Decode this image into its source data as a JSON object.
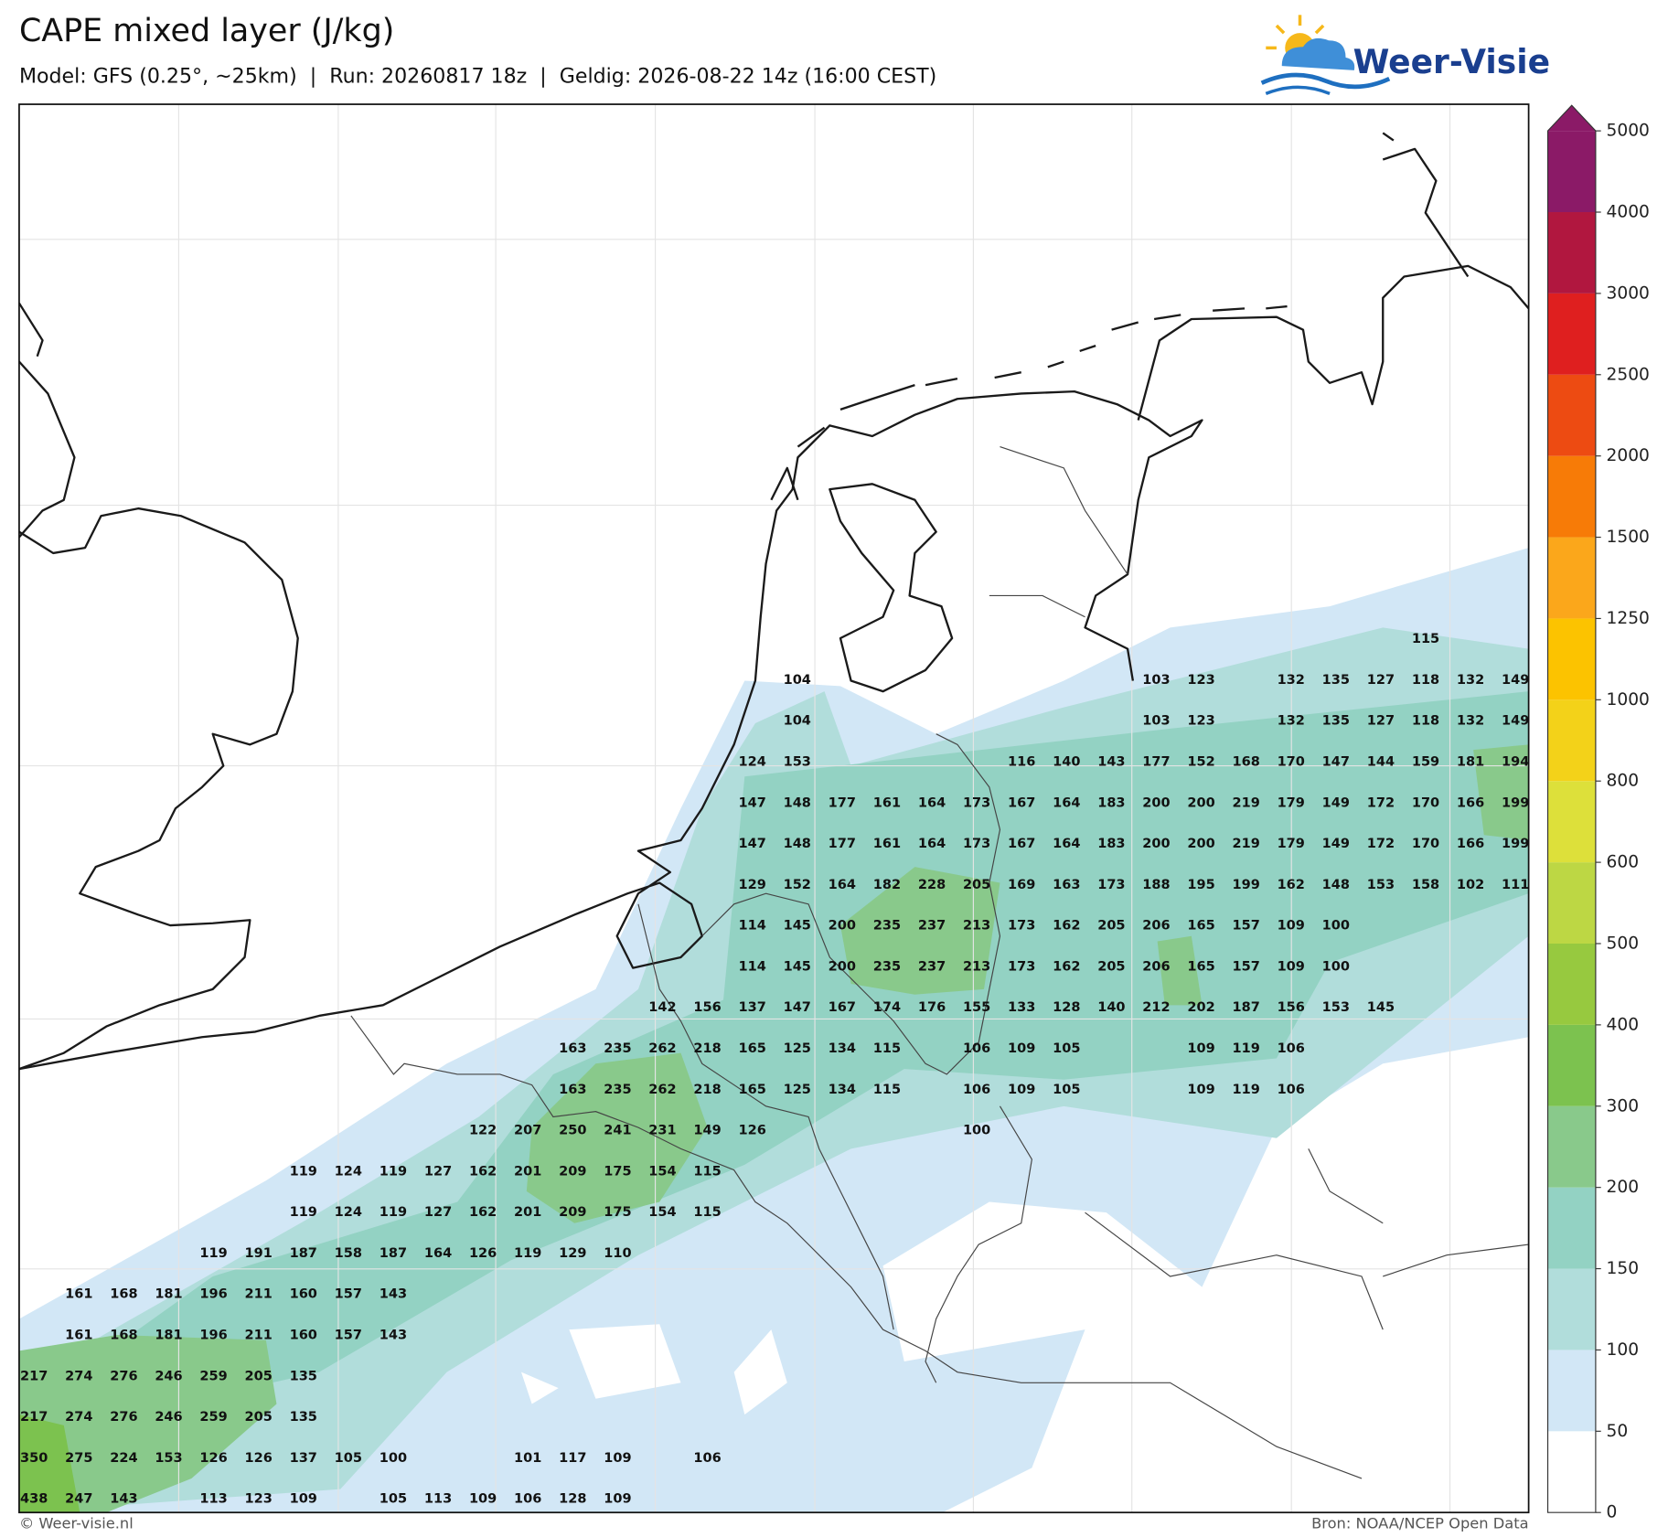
{
  "header": {
    "title": "CAPE mixed layer (J/kg)",
    "subtitle": "Model: GFS (0.25°, ~25km)  |  Run: 20260817 18z  |  Geldig: 2026-08-22 14z (16:00 CEST)"
  },
  "logo": "Weer-Visie",
  "colorbar": {
    "ticks": [
      0,
      50,
      100,
      150,
      200,
      300,
      400,
      500,
      600,
      800,
      1000,
      1250,
      1500,
      2000,
      2500,
      3000,
      4000,
      5000
    ],
    "colors": [
      "#ffffff",
      "#d2e7f6",
      "#b1dddb",
      "#93d2c3",
      "#89c98b",
      "#7cc24f",
      "#97c93f",
      "#bdd744",
      "#dde03a",
      "#f3d219",
      "#fcc300",
      "#fba71b",
      "#f77b07",
      "#ed4b12",
      "#df1f1f",
      "#b1173f",
      "#8b1a67"
    ]
  },
  "grid_values": [
    [
      null,
      null,
      null,
      null,
      null,
      null,
      null,
      null,
      null,
      null,
      null,
      null,
      null,
      null,
      null,
      null,
      null,
      null,
      null,
      null,
      null,
      null,
      null,
      null,
      null,
      null,
      null,
      null,
      null,
      null,
      null,
      115,
      null,
      null
    ],
    [
      null,
      null,
      null,
      null,
      null,
      null,
      null,
      null,
      null,
      null,
      null,
      null,
      null,
      null,
      null,
      null,
      null,
      104,
      null,
      null,
      null,
      null,
      null,
      null,
      null,
      103,
      123,
      null,
      132,
      135,
      127,
      118,
      132,
      149
    ],
    [
      null,
      null,
      null,
      null,
      null,
      null,
      null,
      null,
      null,
      null,
      null,
      null,
      null,
      null,
      null,
      null,
      null,
      104,
      null,
      null,
      null,
      null,
      null,
      null,
      null,
      103,
      123,
      null,
      132,
      135,
      127,
      118,
      132,
      149
    ],
    [
      null,
      null,
      null,
      null,
      null,
      null,
      null,
      null,
      null,
      null,
      null,
      null,
      null,
      null,
      null,
      null,
      124,
      153,
      null,
      null,
      null,
      null,
      116,
      140,
      143,
      177,
      152,
      168,
      170,
      147,
      144,
      159,
      181,
      194
    ],
    [
      null,
      null,
      null,
      null,
      null,
      null,
      null,
      null,
      null,
      null,
      null,
      null,
      null,
      null,
      null,
      null,
      147,
      148,
      177,
      161,
      164,
      173,
      167,
      164,
      183,
      200,
      200,
      219,
      179,
      149,
      172,
      170,
      166,
      199
    ],
    [
      null,
      null,
      null,
      null,
      null,
      null,
      null,
      null,
      null,
      null,
      null,
      null,
      null,
      null,
      null,
      null,
      147,
      148,
      177,
      161,
      164,
      173,
      167,
      164,
      183,
      200,
      200,
      219,
      179,
      149,
      172,
      170,
      166,
      199
    ],
    [
      null,
      null,
      null,
      null,
      null,
      null,
      null,
      null,
      null,
      null,
      null,
      null,
      null,
      null,
      null,
      null,
      129,
      152,
      164,
      182,
      228,
      205,
      169,
      163,
      173,
      188,
      195,
      199,
      162,
      148,
      153,
      158,
      102,
      111
    ],
    [
      null,
      null,
      null,
      null,
      null,
      null,
      null,
      null,
      null,
      null,
      null,
      null,
      null,
      null,
      null,
      null,
      114,
      145,
      200,
      235,
      237,
      213,
      173,
      162,
      205,
      206,
      165,
      157,
      109,
      100,
      null,
      null,
      null,
      null
    ],
    [
      null,
      null,
      null,
      null,
      null,
      null,
      null,
      null,
      null,
      null,
      null,
      null,
      null,
      null,
      null,
      null,
      114,
      145,
      200,
      235,
      237,
      213,
      173,
      162,
      205,
      206,
      165,
      157,
      109,
      100,
      null,
      null,
      null,
      null
    ],
    [
      null,
      null,
      null,
      null,
      null,
      null,
      null,
      null,
      null,
      null,
      null,
      null,
      null,
      null,
      142,
      156,
      137,
      147,
      167,
      174,
      176,
      155,
      133,
      128,
      140,
      212,
      202,
      187,
      156,
      153,
      145,
      null,
      null,
      null
    ],
    [
      null,
      null,
      null,
      null,
      null,
      null,
      null,
      null,
      null,
      null,
      null,
      null,
      163,
      235,
      262,
      218,
      165,
      125,
      134,
      115,
      null,
      106,
      109,
      105,
      null,
      null,
      109,
      119,
      106,
      null,
      null,
      null,
      null,
      null
    ],
    [
      null,
      null,
      null,
      null,
      null,
      null,
      null,
      null,
      null,
      null,
      null,
      null,
      163,
      235,
      262,
      218,
      165,
      125,
      134,
      115,
      null,
      106,
      109,
      105,
      null,
      null,
      109,
      119,
      106,
      null,
      null,
      null,
      null,
      null
    ],
    [
      null,
      null,
      null,
      null,
      null,
      null,
      null,
      null,
      null,
      null,
      122,
      207,
      250,
      241,
      231,
      149,
      126,
      null,
      null,
      null,
      null,
      100,
      null,
      null,
      null,
      null,
      null,
      null,
      null,
      null,
      null,
      null,
      null,
      null
    ],
    [
      null,
      null,
      null,
      null,
      null,
      null,
      119,
      124,
      119,
      127,
      162,
      201,
      209,
      175,
      154,
      115,
      null,
      null,
      null,
      null,
      null,
      null,
      null,
      null,
      null,
      null,
      null,
      null,
      null,
      null,
      null,
      null,
      null,
      null
    ],
    [
      null,
      null,
      null,
      null,
      null,
      null,
      119,
      124,
      119,
      127,
      162,
      201,
      209,
      175,
      154,
      115,
      null,
      null,
      null,
      null,
      null,
      null,
      null,
      null,
      null,
      null,
      null,
      null,
      null,
      null,
      null,
      null,
      null,
      null
    ],
    [
      null,
      null,
      null,
      null,
      119,
      191,
      187,
      158,
      187,
      164,
      126,
      119,
      129,
      110,
      null,
      null,
      null,
      null,
      null,
      null,
      null,
      null,
      null,
      null,
      null,
      null,
      null,
      null,
      null,
      null,
      null,
      null,
      null,
      null
    ],
    [
      null,
      161,
      168,
      181,
      196,
      211,
      160,
      157,
      143,
      null,
      null,
      null,
      null,
      null,
      null,
      null,
      null,
      null,
      null,
      null,
      null,
      null,
      null,
      null,
      null,
      null,
      null,
      null,
      null,
      null,
      null,
      null,
      null,
      null
    ],
    [
      null,
      161,
      168,
      181,
      196,
      211,
      160,
      157,
      143,
      null,
      null,
      null,
      null,
      null,
      null,
      null,
      null,
      null,
      null,
      null,
      null,
      null,
      null,
      null,
      null,
      null,
      null,
      null,
      null,
      null,
      null,
      null,
      null,
      null
    ],
    [
      217,
      274,
      276,
      246,
      259,
      205,
      135,
      null,
      null,
      null,
      null,
      null,
      null,
      null,
      null,
      null,
      null,
      null,
      null,
      null,
      null,
      null,
      null,
      null,
      null,
      null,
      null,
      null,
      null,
      null,
      null,
      null,
      null,
      null
    ],
    [
      217,
      274,
      276,
      246,
      259,
      205,
      135,
      null,
      null,
      null,
      null,
      null,
      null,
      null,
      null,
      null,
      null,
      null,
      null,
      null,
      null,
      null,
      null,
      null,
      null,
      null,
      null,
      null,
      null,
      null,
      null,
      null,
      null,
      null
    ],
    [
      350,
      275,
      224,
      153,
      126,
      126,
      137,
      105,
      100,
      null,
      null,
      101,
      117,
      109,
      null,
      106,
      null,
      null,
      null,
      null,
      null,
      null,
      null,
      null,
      null,
      null,
      null,
      null,
      null,
      null,
      null,
      null,
      null,
      null
    ],
    [
      438,
      247,
      143,
      null,
      113,
      123,
      109,
      null,
      105,
      113,
      109,
      106,
      128,
      109,
      null,
      null,
      null,
      null,
      null,
      null,
      null,
      null,
      null,
      null,
      null,
      null,
      null,
      null,
      null,
      null,
      null,
      null,
      null,
      null
    ]
  ],
  "footer": {
    "left": "© Weer-visie.nl",
    "right": "Bron: NOAA/NCEP Open Data"
  }
}
